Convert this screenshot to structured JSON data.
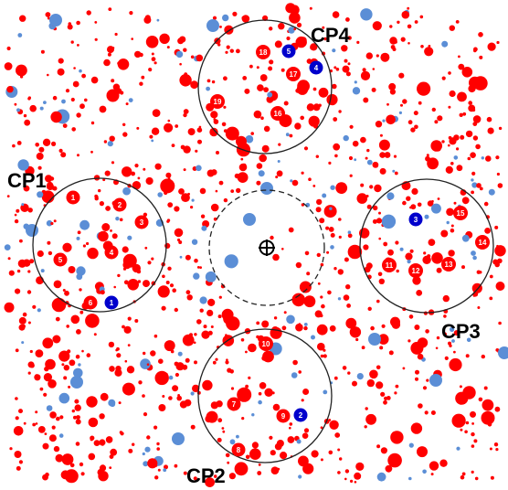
{
  "colors": {
    "red": "#ff0000",
    "blue": "#5b8ed6",
    "dark_blue": "#0000cc",
    "circle_stroke": "#222222",
    "label_text": "#000000"
  },
  "circles": [
    {
      "id": "CP1",
      "label": "CP1"
    },
    {
      "id": "CP2",
      "label": "CP2"
    },
    {
      "id": "CP3",
      "label": "CP3"
    },
    {
      "id": "CP4",
      "label": "CP4"
    },
    {
      "id": "center",
      "label": ""
    }
  ],
  "center_marker": {
    "icon": "crosshair-icon"
  },
  "numbered_points": [
    {
      "label": "1",
      "color": "dark_blue"
    },
    {
      "label": "2",
      "color": "dark_blue"
    },
    {
      "label": "3",
      "color": "dark_blue"
    },
    {
      "label": "4",
      "color": "dark_blue"
    },
    {
      "label": "5",
      "color": "dark_blue"
    },
    {
      "label": "1",
      "color": "red"
    },
    {
      "label": "2",
      "color": "red"
    },
    {
      "label": "3",
      "color": "red"
    },
    {
      "label": "4",
      "color": "red"
    },
    {
      "label": "5",
      "color": "red"
    },
    {
      "label": "6",
      "color": "red"
    },
    {
      "label": "7",
      "color": "red"
    },
    {
      "label": "8",
      "color": "red"
    },
    {
      "label": "9",
      "color": "red"
    },
    {
      "label": "10",
      "color": "red"
    },
    {
      "label": "11",
      "color": "red"
    },
    {
      "label": "12",
      "color": "red"
    },
    {
      "label": "13",
      "color": "red"
    },
    {
      "label": "14",
      "color": "red"
    },
    {
      "label": "15",
      "color": "red"
    },
    {
      "label": "16",
      "color": "red"
    },
    {
      "label": "17",
      "color": "red"
    },
    {
      "label": "18",
      "color": "red"
    },
    {
      "label": "19",
      "color": "red"
    }
  ]
}
